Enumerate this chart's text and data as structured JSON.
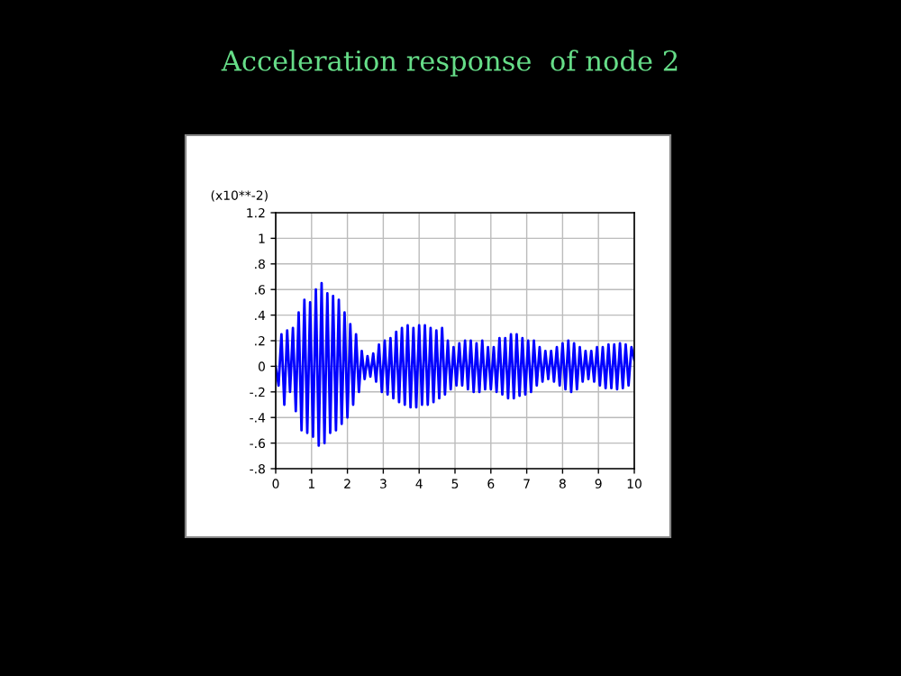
{
  "chart_data": {
    "type": "line",
    "title": "Acceleration response  of node 2",
    "ylabel": "(x10**-2)",
    "x": [
      0.0,
      0.08,
      0.16,
      0.24,
      0.32,
      0.4,
      0.48,
      0.56,
      0.64,
      0.72,
      0.8,
      0.88,
      0.96,
      1.04,
      1.12,
      1.2,
      1.28,
      1.36,
      1.44,
      1.52,
      1.6,
      1.68,
      1.76,
      1.84,
      1.92,
      2.0,
      2.08,
      2.16,
      2.24,
      2.32,
      2.4,
      2.48,
      2.56,
      2.64,
      2.72,
      2.8,
      2.88,
      2.96,
      3.04,
      3.12,
      3.2,
      3.28,
      3.36,
      3.44,
      3.52,
      3.6,
      3.68,
      3.76,
      3.84,
      3.92,
      4.0,
      4.08,
      4.16,
      4.24,
      4.32,
      4.4,
      4.48,
      4.56,
      4.64,
      4.72,
      4.8,
      4.88,
      4.96,
      5.04,
      5.12,
      5.2,
      5.28,
      5.36,
      5.44,
      5.52,
      5.6,
      5.68,
      5.76,
      5.84,
      5.92,
      6.0,
      6.08,
      6.16,
      6.24,
      6.32,
      6.4,
      6.48,
      6.56,
      6.64,
      6.72,
      6.8,
      6.88,
      6.96,
      7.04,
      7.12,
      7.2,
      7.28,
      7.36,
      7.44,
      7.52,
      7.6,
      7.68,
      7.76,
      7.84,
      7.92,
      8.0,
      8.08,
      8.16,
      8.24,
      8.32,
      8.4,
      8.48,
      8.56,
      8.64,
      8.72,
      8.8,
      8.88,
      8.96,
      9.04,
      9.12,
      9.2,
      9.28,
      9.36,
      9.44,
      9.52,
      9.6,
      9.68,
      9.76,
      9.84,
      9.92,
      10.0
    ],
    "series": [
      {
        "color": "#0000ff",
        "values": [
          0.0,
          -0.15,
          0.25,
          -0.3,
          0.28,
          -0.2,
          0.3,
          -0.35,
          0.42,
          -0.5,
          0.52,
          -0.52,
          0.5,
          -0.55,
          0.6,
          -0.62,
          0.65,
          -0.6,
          0.57,
          -0.52,
          0.55,
          -0.5,
          0.52,
          -0.45,
          0.42,
          -0.4,
          0.33,
          -0.3,
          0.25,
          -0.2,
          0.12,
          -0.1,
          0.08,
          -0.08,
          0.1,
          -0.12,
          0.17,
          -0.2,
          0.2,
          -0.22,
          0.22,
          -0.25,
          0.27,
          -0.28,
          0.3,
          -0.3,
          0.32,
          -0.32,
          0.3,
          -0.32,
          0.32,
          -0.3,
          0.32,
          -0.3,
          0.3,
          -0.28,
          0.28,
          -0.25,
          0.3,
          -0.22,
          0.2,
          -0.18,
          0.15,
          -0.15,
          0.18,
          -0.15,
          0.2,
          -0.18,
          0.2,
          -0.2,
          0.18,
          -0.2,
          0.2,
          -0.18,
          0.15,
          -0.18,
          0.15,
          -0.2,
          0.22,
          -0.22,
          0.22,
          -0.25,
          0.25,
          -0.25,
          0.25,
          -0.23,
          0.22,
          -0.22,
          0.2,
          -0.2,
          0.2,
          -0.15,
          0.15,
          -0.12,
          0.12,
          -0.1,
          0.12,
          -0.12,
          0.15,
          -0.15,
          0.18,
          -0.18,
          0.2,
          -0.2,
          0.18,
          -0.18,
          0.15,
          -0.12,
          0.12,
          -0.1,
          0.12,
          -0.12,
          0.15,
          -0.15,
          0.15,
          -0.17,
          0.17,
          -0.17,
          0.17,
          -0.18,
          0.18,
          -0.17,
          0.17,
          -0.15,
          0.15,
          0.05
        ]
      }
    ],
    "xlim": [
      0,
      10
    ],
    "xticks": [
      0,
      1,
      2,
      3,
      4,
      5,
      6,
      7,
      8,
      9,
      10
    ],
    "ylim": [
      -0.8,
      1.2
    ],
    "yticks": [
      {
        "value": -0.8,
        "label": "-.8"
      },
      {
        "value": -0.6,
        "label": "-.6"
      },
      {
        "value": -0.4,
        "label": "-.4"
      },
      {
        "value": -0.2,
        "label": "-.2"
      },
      0,
      {
        "value": 0.2,
        "label": ".2"
      },
      {
        "value": 0.4,
        "label": ".4"
      },
      {
        "value": 0.6,
        "label": ".6"
      },
      {
        "value": 0.8,
        "label": ".8"
      },
      1,
      {
        "value": 1.2,
        "label": "1.2"
      }
    ],
    "grid": true,
    "legend": false,
    "marker": "none",
    "line_style": "solid"
  }
}
